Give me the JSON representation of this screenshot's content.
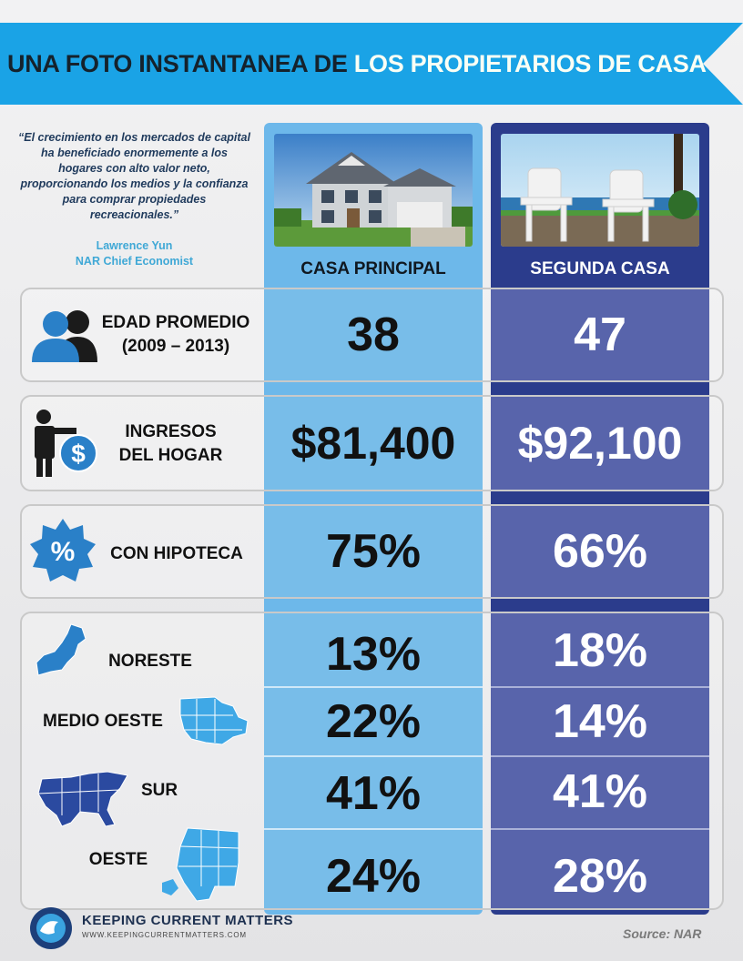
{
  "header": {
    "title_part1": "UNA FOTO INSTANTANEA DE ",
    "title_part2": "LOS PROPIETARIOS DE CASA"
  },
  "quote": {
    "text": "“El crecimiento en los mercados  de capital ha beneficiado enormemente a los hogares con alto  valor neto, proporcionando  los medios y la confianza  para comprar propiedades recreacionales.”",
    "author_name": "Lawrence Yun",
    "author_title": "NAR Chief Economist"
  },
  "columns": {
    "primary": "CASA PRINCIPAL",
    "second": "SEGUNDA CASA"
  },
  "rows": {
    "age": {
      "label_line1": "EDAD PROMEDIO",
      "label_line2": "(2009 – 2013)",
      "primary": "38",
      "second": "47"
    },
    "income": {
      "label_line1": "INGRESOS",
      "label_line2": "DEL HOGAR",
      "primary": "$81,400",
      "second": "$92,100"
    },
    "mortgage": {
      "label": "CON HIPOTECA",
      "primary": "75%",
      "second": "66%"
    }
  },
  "regions": [
    {
      "label": "NORESTE",
      "primary": "13%",
      "second": "18%"
    },
    {
      "label": "MEDIO OESTE",
      "primary": "22%",
      "second": "14%"
    },
    {
      "label": "SUR",
      "primary": "41%",
      "second": "41%"
    },
    {
      "label": "OESTE",
      "primary": "24%",
      "second": "28%"
    }
  ],
  "footer": {
    "logo_text": "KEEPING CURRENT MATTERS",
    "logo_url": "WWW.KEEPINGCURRENTMATTERS.COM",
    "source": "Source: NAR"
  },
  "colors": {
    "banner": "#1aa3e6",
    "primary_col": "#6db8ea",
    "second_col": "#2b3c8c",
    "icon_blue": "#2a80c8"
  },
  "icons": [
    "people-icon",
    "businessman-dollar-icon",
    "percent-badge-icon",
    "northeast-map-icon",
    "midwest-map-icon",
    "south-map-icon",
    "west-map-icon",
    "kcm-logo-icon"
  ]
}
